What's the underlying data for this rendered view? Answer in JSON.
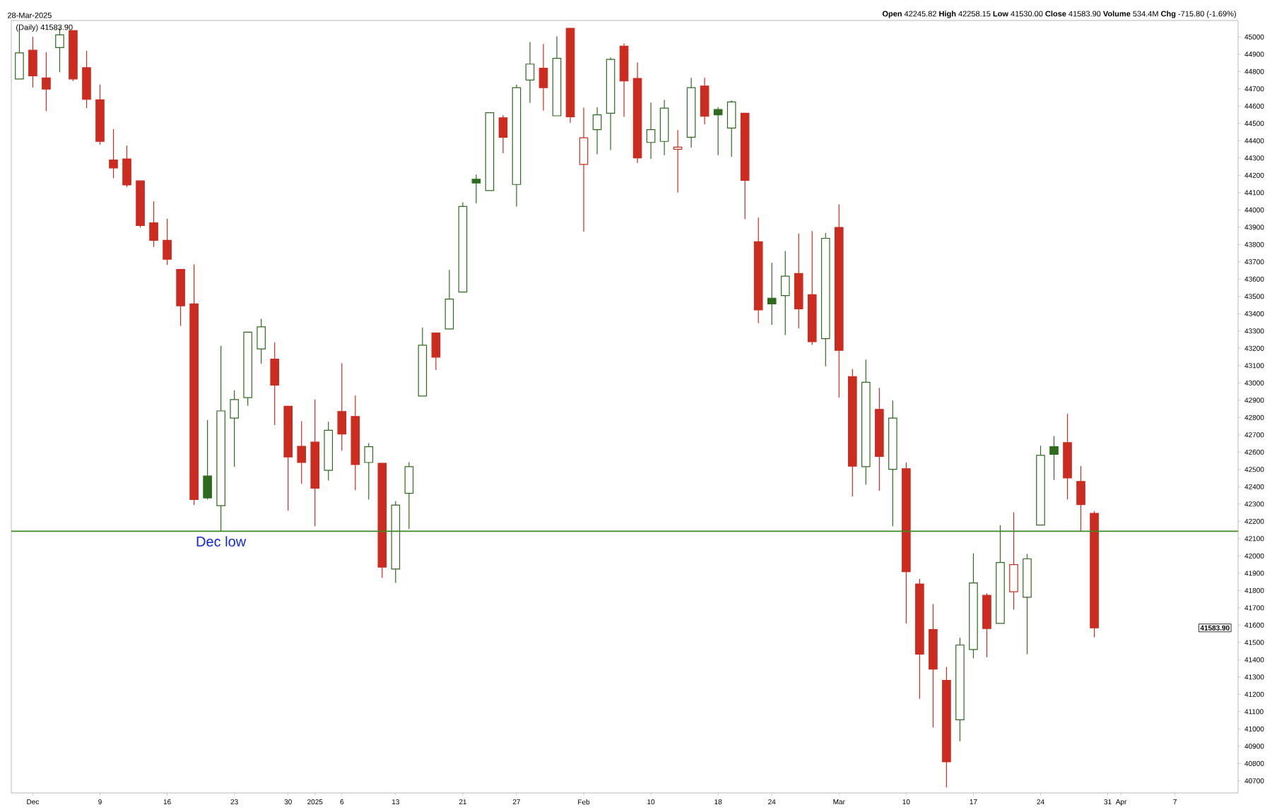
{
  "chart_data": {
    "type": "candlestick",
    "subtitle": "28-Mar-2025",
    "categories": [
      null,
      "Dec",
      null,
      null,
      null,
      null,
      "9",
      null,
      null,
      null,
      null,
      "16",
      null,
      null,
      null,
      null,
      "23",
      null,
      null,
      null,
      "30",
      null,
      "2025",
      null,
      "6",
      null,
      null,
      null,
      "13",
      null,
      null,
      null,
      null,
      "21",
      null,
      null,
      null,
      "27",
      null,
      null,
      null,
      null,
      "Feb",
      null,
      null,
      null,
      null,
      "10",
      null,
      null,
      null,
      null,
      "18",
      null,
      null,
      null,
      "24",
      null,
      null,
      null,
      null,
      "Mar",
      null,
      null,
      null,
      null,
      "10",
      null,
      null,
      null,
      null,
      "17",
      null,
      null,
      null,
      null,
      "24",
      null,
      null,
      null,
      null,
      "31",
      "Apr",
      null,
      null,
      null,
      "7",
      null,
      null,
      null,
      null
    ],
    "ohlc": [
      [
        44757,
        45050,
        44757,
        44908
      ],
      [
        44923,
        45000,
        44707,
        44775
      ],
      [
        44763,
        44911,
        44571,
        44698
      ],
      [
        44938,
        45050,
        44796,
        45012
      ],
      [
        45036,
        45036,
        44745,
        44757
      ],
      [
        44822,
        44920,
        44588,
        44639
      ],
      [
        44636,
        44725,
        44378,
        44396
      ],
      [
        44289,
        44467,
        44183,
        44242
      ],
      [
        44295,
        44372,
        44132,
        44144
      ],
      [
        44168,
        44168,
        43898,
        43910
      ],
      [
        43925,
        44050,
        43786,
        43824
      ],
      [
        43824,
        43949,
        43682,
        43715
      ],
      [
        43656,
        43656,
        43330,
        43446
      ],
      [
        43457,
        43685,
        42294,
        42326
      ],
      [
        42462,
        42785,
        42326,
        42335
      ],
      [
        42291,
        43215,
        42143,
        42838
      ],
      [
        42797,
        42957,
        42516,
        42904
      ],
      [
        42915,
        43294,
        42868,
        43294
      ],
      [
        43197,
        43371,
        43111,
        43324
      ],
      [
        43138,
        43235,
        42756,
        42987
      ],
      [
        42865,
        42865,
        42261,
        42572
      ],
      [
        42634,
        42779,
        42418,
        42540
      ],
      [
        42658,
        42904,
        42172,
        42391
      ],
      [
        42495,
        42776,
        42436,
        42726
      ],
      [
        42835,
        43114,
        42608,
        42705
      ],
      [
        42806,
        42927,
        42380,
        42528
      ],
      [
        42540,
        42652,
        42326,
        42631
      ],
      [
        42536,
        42536,
        41873,
        41935
      ],
      [
        41924,
        42317,
        41844,
        42294
      ],
      [
        42362,
        42542,
        42155,
        42516
      ],
      [
        42924,
        43321,
        42924,
        43218
      ],
      [
        43289,
        43289,
        43075,
        43149
      ],
      [
        43312,
        43653,
        43312,
        43484
      ],
      [
        43525,
        44044,
        43525,
        44020
      ],
      [
        44177,
        44204,
        44038,
        44156
      ],
      [
        44112,
        44562,
        44112,
        44562
      ],
      [
        44532,
        44547,
        44328,
        44420
      ],
      [
        44147,
        44725,
        44020,
        44707
      ],
      [
        44751,
        44970,
        44618,
        44843
      ],
      [
        44819,
        44959,
        44574,
        44707
      ],
      [
        44544,
        45003,
        44544,
        44876
      ],
      [
        45050,
        45050,
        44503,
        44538
      ],
      [
        44263,
        44591,
        43875,
        44417
      ],
      [
        44464,
        44594,
        44322,
        44550
      ],
      [
        44559,
        44882,
        44346,
        44870
      ],
      [
        44947,
        44962,
        44538,
        44745
      ],
      [
        44760,
        44852,
        44272,
        44301
      ],
      [
        44390,
        44621,
        44295,
        44464
      ],
      [
        44396,
        44636,
        44316,
        44588
      ],
      [
        44351,
        44461,
        44100,
        44363
      ],
      [
        44420,
        44763,
        44360,
        44707
      ],
      [
        44716,
        44763,
        44494,
        44541
      ],
      [
        44580,
        44594,
        44316,
        44550
      ],
      [
        44473,
        44633,
        44307,
        44624
      ],
      [
        44559,
        44559,
        43946,
        44171
      ],
      [
        43816,
        43955,
        43345,
        43422
      ],
      [
        43490,
        43694,
        43336,
        43457
      ],
      [
        43505,
        43762,
        43277,
        43617
      ],
      [
        43632,
        43863,
        43315,
        43428
      ],
      [
        43510,
        43878,
        43220,
        43238
      ],
      [
        43256,
        43866,
        43096,
        43836
      ],
      [
        43899,
        44032,
        42915,
        43188
      ],
      [
        43037,
        43081,
        42344,
        42519
      ],
      [
        42516,
        43135,
        42412,
        43004
      ],
      [
        42847,
        42972,
        42377,
        42575
      ],
      [
        42501,
        42898,
        42172,
        42797
      ],
      [
        42504,
        42539,
        41610,
        41909
      ],
      [
        41838,
        41867,
        41174,
        41432
      ],
      [
        41574,
        41722,
        41009,
        41346
      ],
      [
        41281,
        41358,
        40662,
        40810
      ],
      [
        41053,
        41527,
        40929,
        41485
      ],
      [
        41459,
        42015,
        41408,
        41844
      ],
      [
        41772,
        41784,
        41414,
        41580
      ],
      [
        41610,
        42178,
        41610,
        41962
      ],
      [
        41793,
        42252,
        41689,
        41950
      ],
      [
        41761,
        42012,
        41432,
        41983
      ],
      [
        42178,
        42637,
        42178,
        42581
      ],
      [
        42631,
        42693,
        42439,
        42587
      ],
      [
        42655,
        42821,
        42326,
        42451
      ],
      [
        42430,
        42519,
        42143,
        42297
      ],
      [
        42245.82,
        42258.15,
        41530.0,
        41583.9
      ],
      null,
      null,
      null,
      null,
      null,
      null,
      null,
      null,
      null,
      null
    ],
    "colors": [
      "#2e6b1e",
      "#cc2b1f",
      "#cc2b1f",
      "#2e6b1e",
      "#cc2b1f",
      "#cc2b1f",
      "#cc2b1f",
      "#cc2b1f",
      "#cc2b1f",
      "#cc2b1f",
      "#cc2b1f",
      "#cc2b1f",
      "#cc2b1f",
      "#cc2b1f",
      "#2e6b1e",
      "#2e6b1e",
      "#2e6b1e",
      "#2e6b1e",
      "#2e6b1e",
      "#cc2b1f",
      "#cc2b1f",
      "#cc2b1f",
      "#cc2b1f",
      "#2e6b1e",
      "#cc2b1f",
      "#cc2b1f",
      "#2e6b1e",
      "#cc2b1f",
      "#2e6b1e",
      "#2e6b1e",
      "#2e6b1e",
      "#cc2b1f",
      "#2e6b1e",
      "#2e6b1e",
      "#2e6b1e",
      "#2e6b1e",
      "#cc2b1f",
      "#2e6b1e",
      "#2e6b1e",
      "#cc2b1f",
      "#2e6b1e",
      "#cc2b1f",
      "#cc2b1f",
      "#2e6b1e",
      "#2e6b1e",
      "#cc2b1f",
      "#cc2b1f",
      "#2e6b1e",
      "#2e6b1e",
      "#cc2b1f",
      "#2e6b1e",
      "#cc2b1f",
      "#2e6b1e",
      "#2e6b1e",
      "#cc2b1f",
      "#cc2b1f",
      "#2e6b1e",
      "#2e6b1e",
      "#cc2b1f",
      "#cc2b1f",
      "#2e6b1e",
      "#cc2b1f",
      "#cc2b1f",
      "#2e6b1e",
      "#cc2b1f",
      "#2e6b1e",
      "#cc2b1f",
      "#cc2b1f",
      "#cc2b1f",
      "#cc2b1f",
      "#2e6b1e",
      "#2e6b1e",
      "#cc2b1f",
      "#2e6b1e",
      "#cc2b1f",
      "#2e6b1e",
      "#2e6b1e",
      "#2e6b1e",
      "#cc2b1f",
      "#cc2b1f",
      "#cc2b1f",
      null,
      null,
      null,
      null,
      null,
      null,
      null,
      null,
      null,
      null
    ],
    "ylim": [
      40630,
      45095
    ],
    "yticks": [
      40700,
      40800,
      40900,
      41000,
      41100,
      41200,
      41300,
      41400,
      41500,
      41600,
      41700,
      41800,
      41900,
      42000,
      42100,
      42200,
      42300,
      42400,
      42500,
      42600,
      42700,
      42800,
      42900,
      43000,
      43100,
      43200,
      43300,
      43400,
      43500,
      43600,
      43700,
      43800,
      43900,
      44000,
      44100,
      44200,
      44300,
      44400,
      44500,
      44600,
      44700,
      44800,
      44900,
      45000
    ],
    "ref_lines": [
      {
        "axis": "y",
        "value": 42143,
        "label": "Dec low",
        "color": "#3a8a22"
      }
    ],
    "annotations": [
      "**Open** 42245.82  **High** 42258.15  **Low** 41530.00  **Close** 41583.90  **Volume** 534.4M  **Chg** -715.80 (-1.69%)",
      "(Daily) 41583.90",
      "41583.90"
    ],
    "grid": false
  }
}
